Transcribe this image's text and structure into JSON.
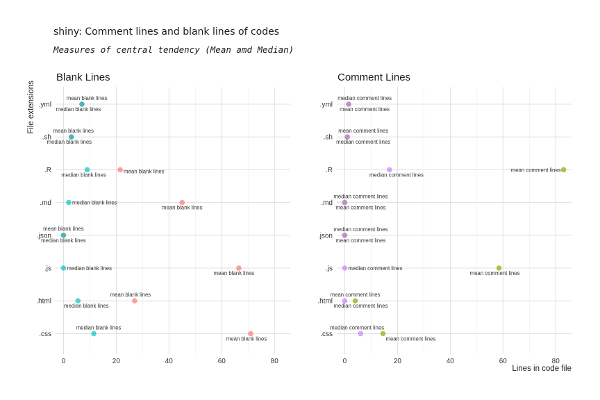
{
  "title": "shiny: Comment lines and blank lines of codes",
  "subtitle": "Measures of central tendency (Mean amd Median)",
  "chart_data": [
    {
      "type": "scatter",
      "title": "Blank Lines",
      "ylabel": "File extensions",
      "xlabel": "",
      "categories": [
        ".yml",
        ".sh",
        ".R",
        ".md",
        ".json",
        ".js",
        ".html",
        ".css"
      ],
      "xlim": [
        -3,
        86
      ],
      "xticks": [
        0,
        20,
        40,
        60,
        80
      ],
      "grid": true,
      "series": [
        {
          "name": "mean blank lines",
          "color": "#F8766D",
          "values": [
            {
              "x": 7,
              "y": ".yml"
            },
            {
              "x": 3,
              "y": ".sh"
            },
            {
              "x": 21.5,
              "y": ".R"
            },
            {
              "x": 45,
              "y": ".md"
            },
            {
              "x": 0,
              "y": ".json"
            },
            {
              "x": 66.5,
              "y": ".js"
            },
            {
              "x": 27,
              "y": ".html"
            },
            {
              "x": 71,
              "y": ".css"
            }
          ]
        },
        {
          "name": "median blank lines",
          "color": "#00BFC4",
          "values": [
            {
              "x": 7,
              "y": ".yml"
            },
            {
              "x": 3,
              "y": ".sh"
            },
            {
              "x": 9,
              "y": ".R"
            },
            {
              "x": 2,
              "y": ".md"
            },
            {
              "x": 0,
              "y": ".json"
            },
            {
              "x": 0,
              "y": ".js"
            },
            {
              "x": 5.5,
              "y": ".html"
            },
            {
              "x": 11.5,
              "y": ".css"
            }
          ]
        }
      ]
    },
    {
      "type": "scatter",
      "title": "Comment Lines",
      "ylabel": "",
      "xlabel": "Lines in code file",
      "categories": [
        ".yml",
        ".sh",
        ".R",
        ".md",
        ".json",
        ".js",
        ".html",
        ".css"
      ],
      "xlim": [
        -3,
        86
      ],
      "xticks": [
        0,
        20,
        40,
        60,
        80
      ],
      "grid": true,
      "series": [
        {
          "name": "mean comment lines",
          "color": "#7CAE00",
          "values": [
            {
              "x": 1.5,
              "y": ".yml"
            },
            {
              "x": 1,
              "y": ".sh"
            },
            {
              "x": 83,
              "y": ".R"
            },
            {
              "x": 0,
              "y": ".md"
            },
            {
              "x": 0,
              "y": ".json"
            },
            {
              "x": 58.5,
              "y": ".js"
            },
            {
              "x": 4,
              "y": ".html"
            },
            {
              "x": 14.5,
              "y": ".css"
            }
          ]
        },
        {
          "name": "median comment lines",
          "color": "#C77CFF",
          "values": [
            {
              "x": 1.5,
              "y": ".yml"
            },
            {
              "x": 1,
              "y": ".sh"
            },
            {
              "x": 17,
              "y": ".R"
            },
            {
              "x": 0,
              "y": ".md"
            },
            {
              "x": 0,
              "y": ".json"
            },
            {
              "x": 0,
              "y": ".js"
            },
            {
              "x": 0,
              "y": ".html"
            },
            {
              "x": 6,
              "y": ".css"
            }
          ]
        }
      ]
    }
  ]
}
